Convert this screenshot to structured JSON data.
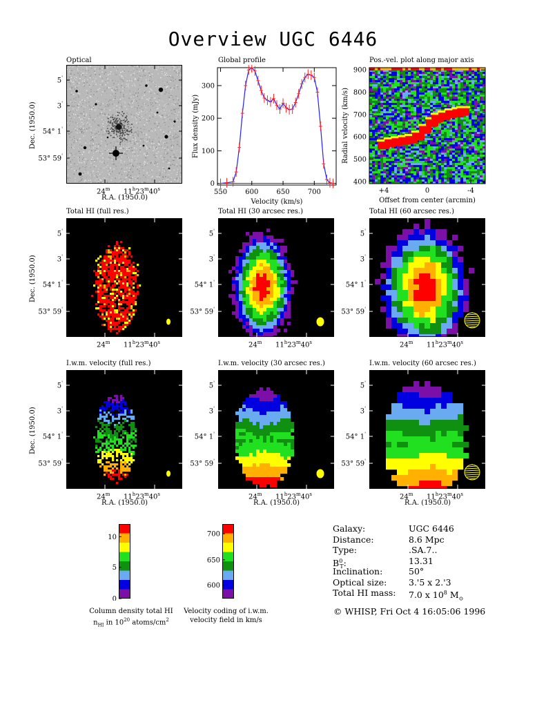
{
  "title": "Overview UGC 6446",
  "panels": {
    "optical": {
      "title": "Optical"
    },
    "global_profile": {
      "title": "Global profile",
      "xlabel": "Velocity (km/s)",
      "ylabel": "Flux density (mJy)"
    },
    "pv": {
      "title": "Pos.-vel. plot along major axis",
      "xlabel": "Offset from center (arcmin)",
      "ylabel": "Radial velocity (km/s)"
    },
    "hi_full": {
      "title": "Total HI (full res.)"
    },
    "hi_30": {
      "title": "Total HI (30 arcsec res.)"
    },
    "hi_60": {
      "title": "Total HI (60 arcsec res.)"
    },
    "vel_full": {
      "title": "I.w.m. velocity (full res.)"
    },
    "vel_30": {
      "title": "I.w.m. velocity (30 arcsec res.)"
    },
    "vel_60": {
      "title": "I.w.m. velocity (60 arcsec res.)"
    }
  },
  "axis_labels": {
    "dec": "Dec. (1950.0)",
    "ra": "R.A. (1950.0)"
  },
  "sky_ticks": {
    "dec": [
      {
        "deg": "",
        "min": "5",
        "unit": "'"
      },
      {
        "deg": "",
        "min": "3",
        "unit": "'"
      },
      {
        "deg": "54°",
        "min": "1",
        "unit": "'"
      },
      {
        "deg": "53°",
        "min": "59",
        "unit": "'"
      }
    ],
    "ra": [
      {
        "text": "24",
        "sup": "m"
      },
      {
        "text": "11",
        "sup1": "h",
        "mid": "23",
        "sup2": "m",
        "end": "40",
        "sup3": "s"
      }
    ]
  },
  "colorbars": {
    "column_density": {
      "ticks": [
        "10",
        "5",
        "0"
      ],
      "caption_line1": "Column density total HI",
      "caption_n": "n",
      "caption_sub": "HI",
      "caption_mid": " in 10",
      "caption_exp": "20",
      "caption_end": " atoms/cm",
      "caption_exp2": "2",
      "colors": [
        "#7b0fa8",
        "#0000e0",
        "#6aaaf0",
        "#109010",
        "#20e020",
        "#ffff00",
        "#ffb000",
        "#ff0000"
      ]
    },
    "velocity": {
      "ticks": [
        "700",
        "650",
        "600"
      ],
      "caption_line1": "Velocity coding of i.w.m.",
      "caption_line2": "velocity field in km/s",
      "colors": [
        "#7b0fa8",
        "#0000e0",
        "#6aaaf0",
        "#109010",
        "#20e020",
        "#ffff00",
        "#ffb000",
        "#ff0000"
      ]
    }
  },
  "galaxy_info": [
    {
      "label": "Galaxy:",
      "value": "UGC 6446"
    },
    {
      "label": "Distance:",
      "value": "8.6 Mpc"
    },
    {
      "label": "Type:",
      "value": ".SA.7.."
    },
    {
      "label": "B",
      "label_sup": "0",
      "label_sub": "T",
      "label_end": ":",
      "value": "13.31"
    },
    {
      "label": "Inclination:",
      "value": "50°"
    },
    {
      "label": "Optical size:",
      "value": "3.'5 x 2.'3"
    },
    {
      "label": "Total HI mass:",
      "value": "7.0 x 10",
      "value_sup": "8",
      "value_end": " M",
      "value_sub": "⊙"
    }
  ],
  "copyright": "© WHISP, Fri Oct  4 16:05:06 1996",
  "chart_data": [
    {
      "type": "line",
      "title": "Global profile",
      "xlabel": "Velocity (km/s)",
      "ylabel": "Flux density (mJy)",
      "xlim": [
        545,
        735
      ],
      "ylim": [
        -5,
        355
      ],
      "xticks": [
        550,
        600,
        650,
        700
      ],
      "yticks": [
        0,
        100,
        200,
        300
      ],
      "x": [
        550,
        560,
        570,
        575,
        580,
        585,
        590,
        595,
        600,
        605,
        610,
        615,
        620,
        625,
        630,
        635,
        640,
        645,
        650,
        655,
        660,
        665,
        670,
        675,
        680,
        685,
        690,
        695,
        700,
        705,
        710,
        715,
        720,
        725,
        730
      ],
      "y": [
        0,
        2,
        5,
        35,
        110,
        215,
        300,
        348,
        355,
        345,
        315,
        285,
        262,
        255,
        250,
        260,
        240,
        228,
        246,
        232,
        226,
        228,
        248,
        275,
        305,
        325,
        335,
        332,
        325,
        280,
        175,
        60,
        12,
        2,
        0
      ]
    },
    {
      "type": "heatmap",
      "title": "Pos.-vel. plot along major axis",
      "xlabel": "Offset from center (arcmin)",
      "ylabel": "Radial velocity (km/s)",
      "xlim": [
        6,
        -6
      ],
      "ylim": [
        390,
        910
      ],
      "xticks": [
        "+4",
        "0",
        "-4"
      ],
      "yticks": [
        400,
        500,
        600,
        700,
        800,
        900
      ]
    }
  ]
}
